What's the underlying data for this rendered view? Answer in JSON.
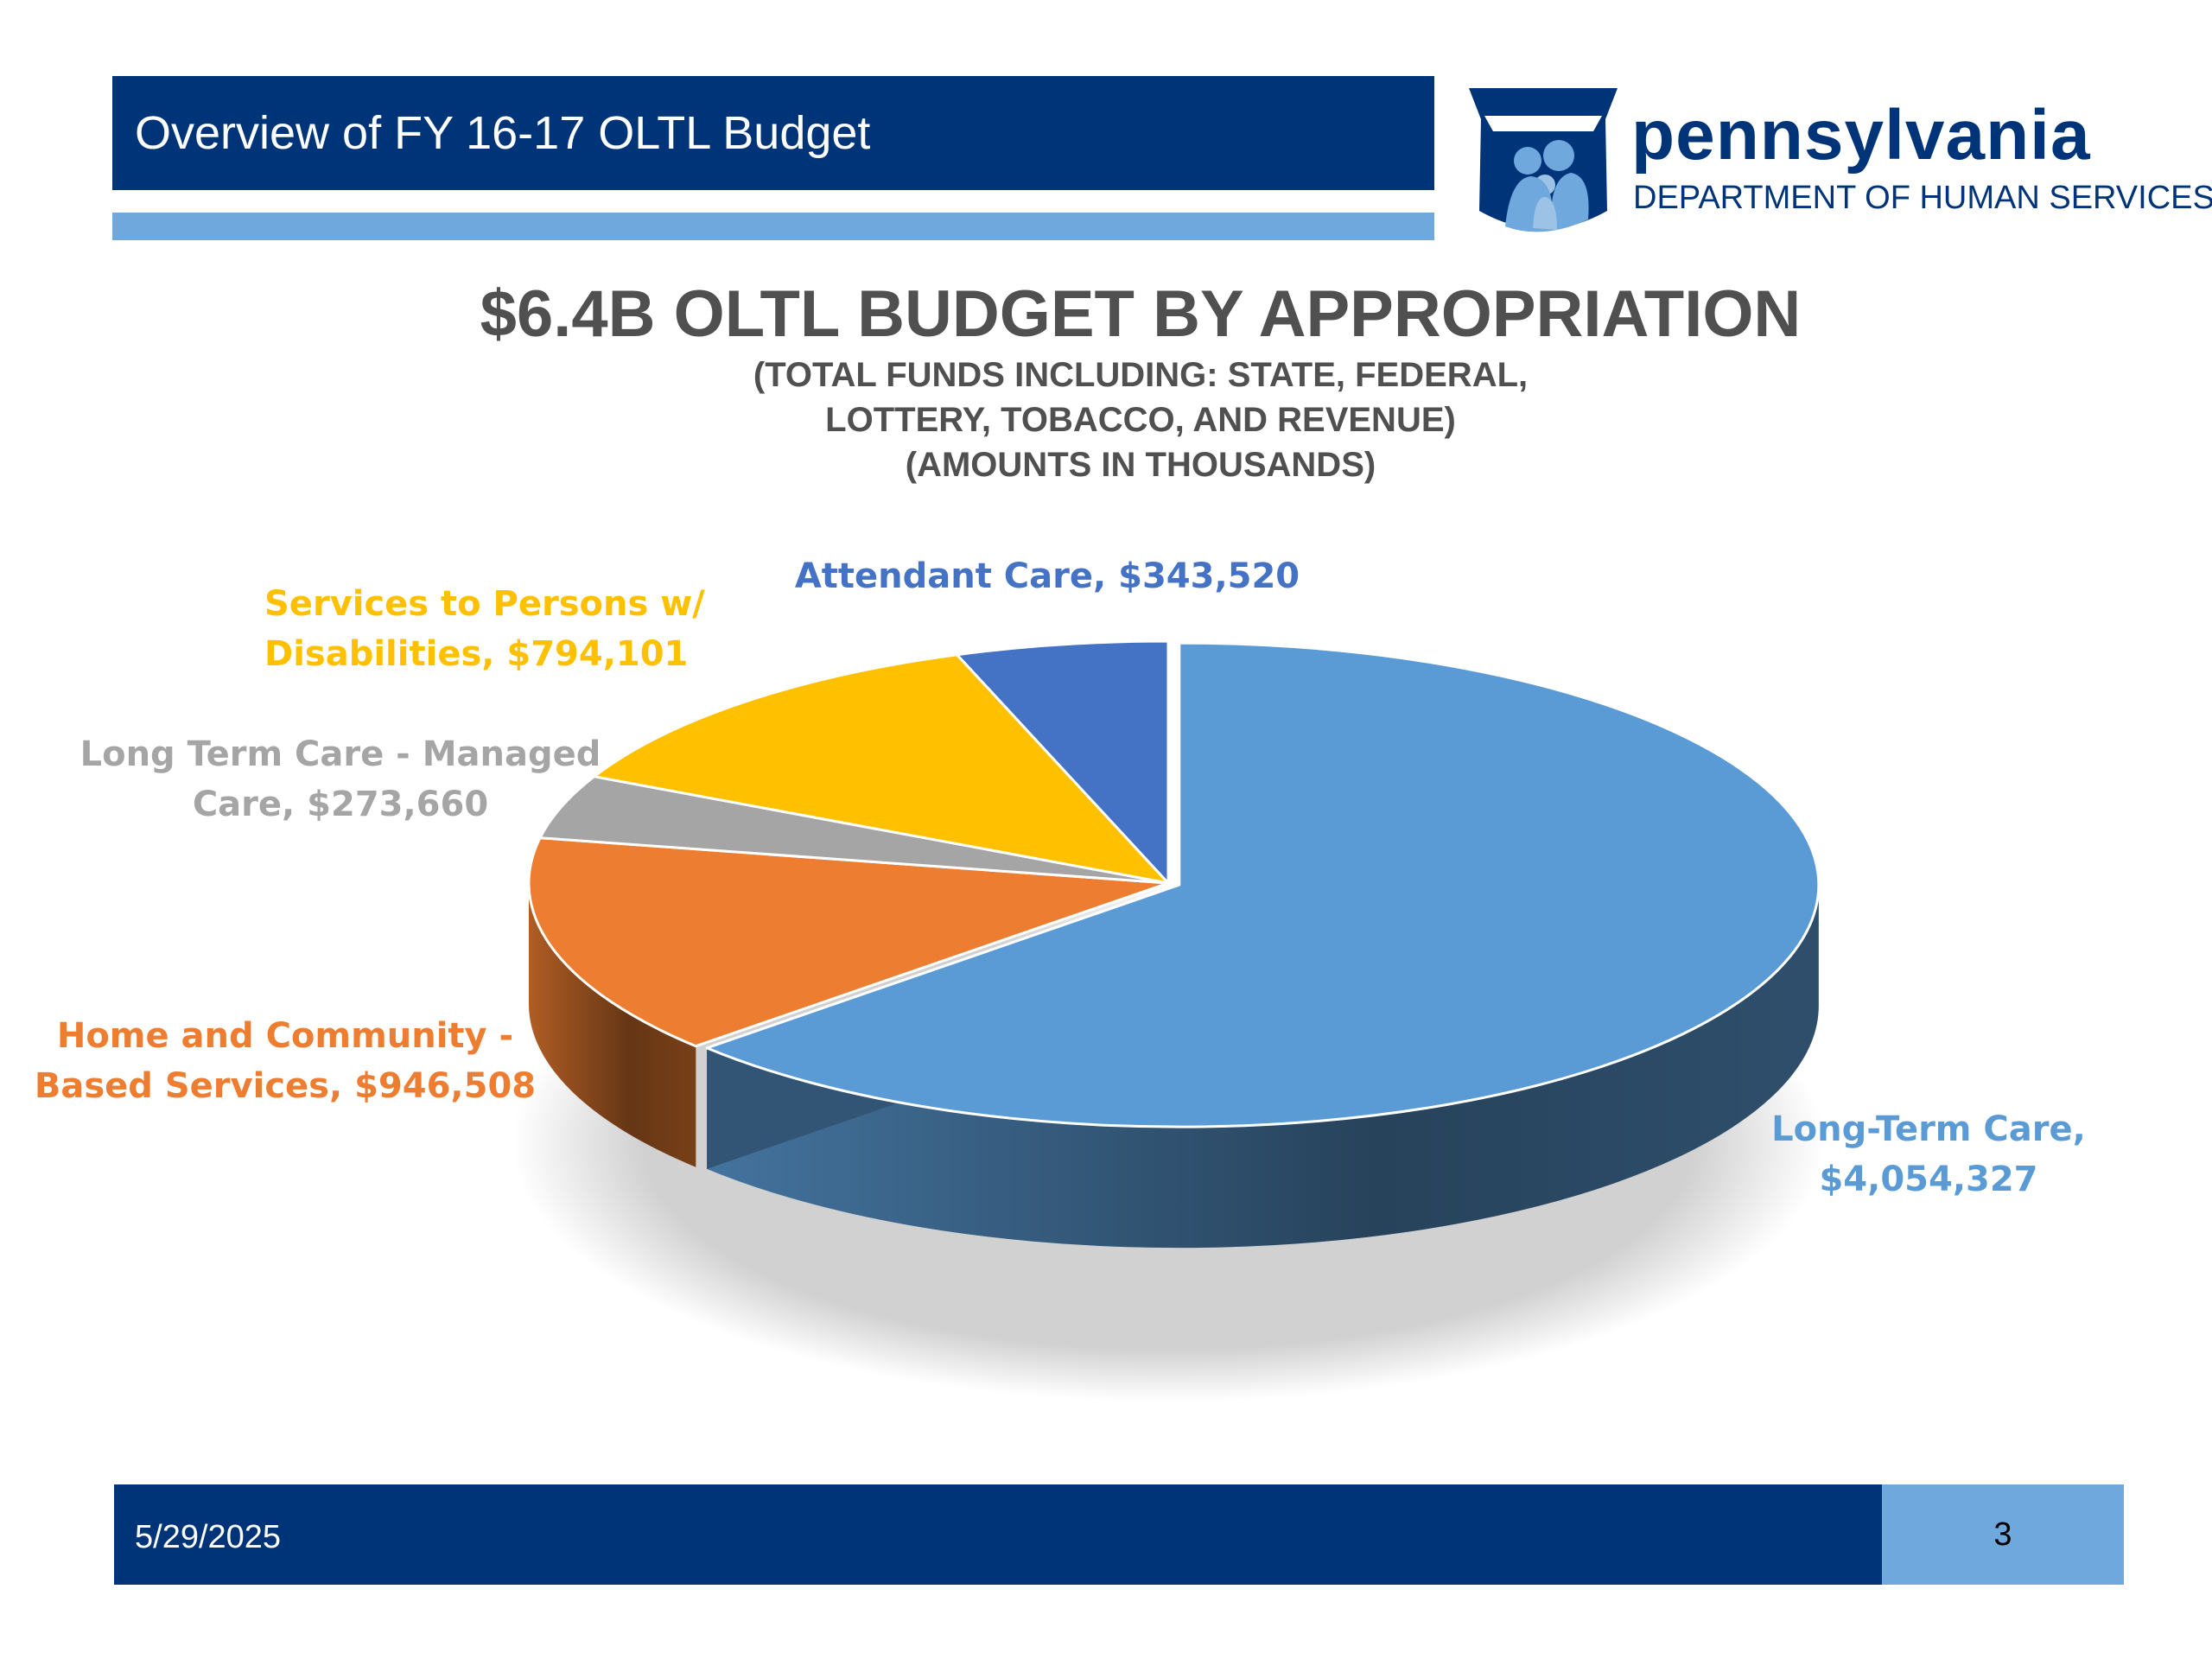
{
  "header": {
    "title": "Overview of FY 16-17 OLTL Budget"
  },
  "logo": {
    "name": "pennsylvania",
    "department": "DEPARTMENT OF HUMAN SERVICES"
  },
  "footer": {
    "date": "5/29/2025",
    "page": "3"
  },
  "colors": {
    "navy": "#003478",
    "light_blue": "#6fa8dc"
  },
  "chart_data": {
    "type": "pie",
    "title": "$6.4B OLTL BUDGET BY APPROPRIATION",
    "subtitle_lines": [
      "(TOTAL FUNDS INCLUDING: STATE, FEDERAL,",
      "LOTTERY, TOBACCO, AND REVENUE)",
      "(AMOUNTS IN THOUSANDS)"
    ],
    "units": "thousands of dollars",
    "slices": [
      {
        "name": "Long-Term Care",
        "value": 4054327,
        "label_lines": [
          "Long-Term Care,",
          "$4,054,327"
        ],
        "color": "#5b9bd5",
        "label_color": "#5b9bd5"
      },
      {
        "name": "Home and Community - Based Services",
        "value": 946508,
        "label_lines": [
          "Home and Community -",
          "Based Services,  $946,508"
        ],
        "color": "#ed7d31",
        "label_color": "#ed7d31"
      },
      {
        "name": "Long Term Care - Managed Care",
        "value": 273660,
        "label_lines": [
          "Long Term Care - Managed",
          "Care,  $273,660"
        ],
        "color": "#a5a5a5",
        "label_color": "#a5a5a5"
      },
      {
        "name": "Services to Persons w/ Disabilities",
        "value": 794101,
        "label_lines": [
          "Services to Persons w/",
          "Disabilities,  $794,101"
        ],
        "color": "#ffc000",
        "label_color": "#ffc000"
      },
      {
        "name": "Attendant Care",
        "value": 343520,
        "label_lines": [
          "Attendant Care,  $343,520"
        ],
        "color": "#4472c4",
        "label_color": "#4472c4"
      }
    ]
  }
}
